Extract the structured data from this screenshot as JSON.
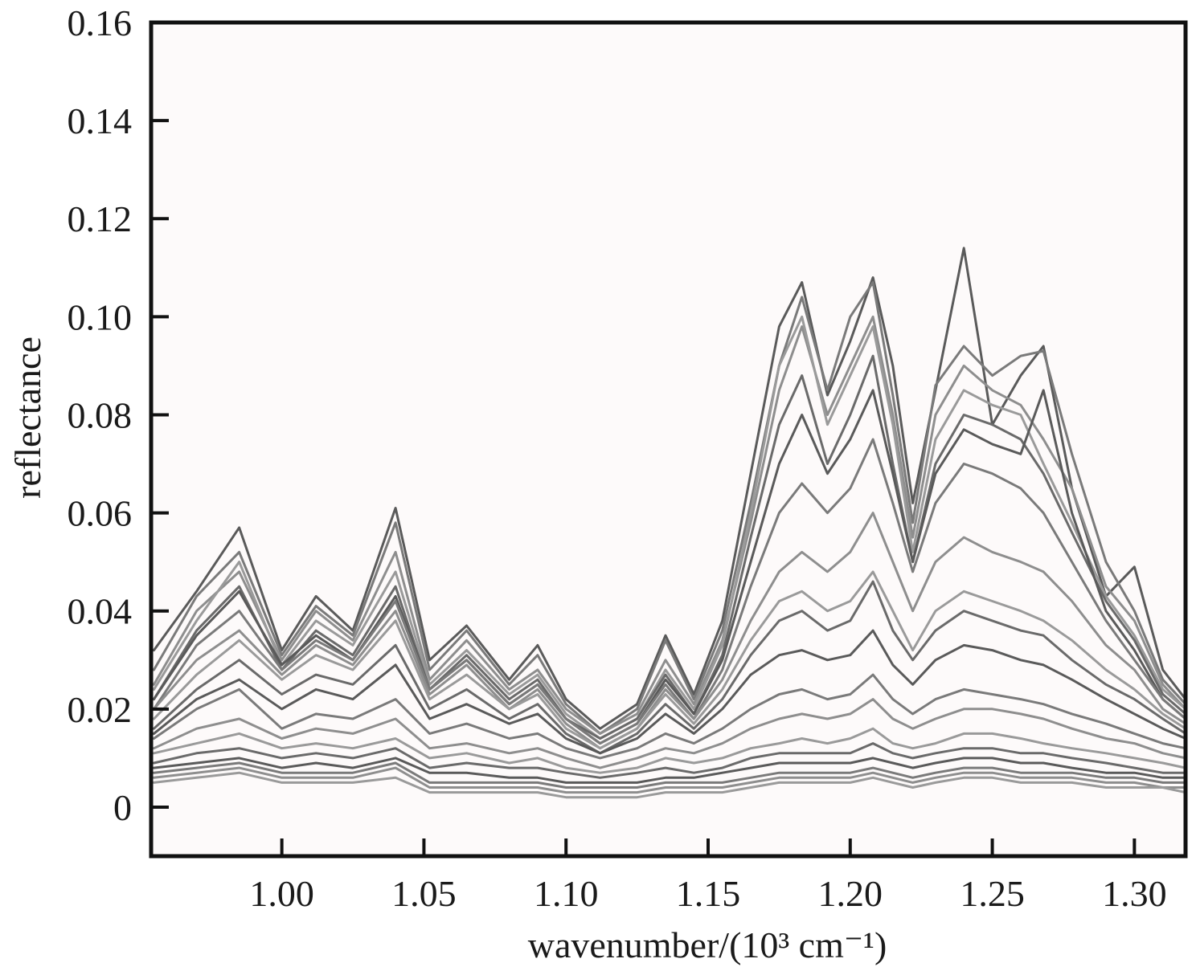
{
  "chart_data": {
    "type": "line",
    "title": "",
    "xlabel": "wavenumber/(10³ cm⁻¹)",
    "ylabel": "reflectance",
    "xlim": [
      0.954,
      1.318
    ],
    "ylim": [
      -0.01,
      0.16
    ],
    "xticks": [
      1.0,
      1.05,
      1.1,
      1.15,
      1.2,
      1.25,
      1.3
    ],
    "xtick_labels": [
      "1.00",
      "1.05",
      "1.10",
      "1.15",
      "1.20",
      "1.25",
      "1.30"
    ],
    "yticks": [
      0,
      0.02,
      0.04,
      0.06,
      0.08,
      0.1,
      0.12,
      0.14,
      0.16
    ],
    "ytick_labels": [
      "0",
      "0.02",
      "0.04",
      "0.06",
      "0.08",
      "0.10",
      "0.12",
      "0.14",
      "0.16"
    ],
    "grid": false,
    "legend": "none",
    "plot_background": "#fdfafa",
    "series_colors": [
      "#5a5a5a",
      "#7a7a7a",
      "#8e8e8e",
      "#9a9a9a",
      "#6a6a6a"
    ],
    "x": [
      0.955,
      0.97,
      0.985,
      1.0,
      1.012,
      1.025,
      1.04,
      1.052,
      1.065,
      1.08,
      1.09,
      1.1,
      1.112,
      1.125,
      1.135,
      1.145,
      1.155,
      1.165,
      1.175,
      1.183,
      1.192,
      1.2,
      1.208,
      1.215,
      1.222,
      1.23,
      1.24,
      1.25,
      1.26,
      1.268,
      1.278,
      1.29,
      1.3,
      1.31,
      1.318
    ],
    "series": [
      {
        "values": [
          0.032,
          0.044,
          0.057,
          0.032,
          0.043,
          0.036,
          0.061,
          0.03,
          0.037,
          0.026,
          0.033,
          0.022,
          0.016,
          0.021,
          0.035,
          0.023,
          0.038,
          0.068,
          0.098,
          0.107,
          0.084,
          0.095,
          0.108,
          0.09,
          0.062,
          0.085,
          0.114,
          0.078,
          0.088,
          0.094,
          0.065,
          0.043,
          0.049,
          0.028,
          0.022
        ]
      },
      {
        "values": [
          0.028,
          0.043,
          0.052,
          0.031,
          0.041,
          0.035,
          0.058,
          0.028,
          0.036,
          0.025,
          0.031,
          0.021,
          0.015,
          0.02,
          0.034,
          0.022,
          0.036,
          0.062,
          0.09,
          0.104,
          0.085,
          0.1,
          0.107,
          0.084,
          0.058,
          0.086,
          0.094,
          0.088,
          0.092,
          0.093,
          0.072,
          0.05,
          0.04,
          0.026,
          0.021
        ]
      },
      {
        "values": [
          0.025,
          0.04,
          0.048,
          0.03,
          0.04,
          0.034,
          0.052,
          0.026,
          0.034,
          0.024,
          0.028,
          0.02,
          0.015,
          0.019,
          0.03,
          0.021,
          0.034,
          0.058,
          0.085,
          0.098,
          0.08,
          0.09,
          0.1,
          0.08,
          0.055,
          0.08,
          0.09,
          0.085,
          0.082,
          0.075,
          0.065,
          0.045,
          0.038,
          0.025,
          0.02
        ]
      },
      {
        "values": [
          0.024,
          0.038,
          0.05,
          0.029,
          0.038,
          0.033,
          0.048,
          0.025,
          0.032,
          0.023,
          0.027,
          0.019,
          0.014,
          0.018,
          0.028,
          0.02,
          0.033,
          0.06,
          0.09,
          0.1,
          0.078,
          0.088,
          0.098,
          0.078,
          0.052,
          0.075,
          0.085,
          0.082,
          0.08,
          0.07,
          0.058,
          0.043,
          0.035,
          0.024,
          0.02
        ]
      },
      {
        "values": [
          0.022,
          0.036,
          0.045,
          0.028,
          0.036,
          0.031,
          0.045,
          0.024,
          0.031,
          0.022,
          0.026,
          0.018,
          0.014,
          0.018,
          0.027,
          0.019,
          0.031,
          0.055,
          0.078,
          0.088,
          0.07,
          0.08,
          0.092,
          0.07,
          0.05,
          0.07,
          0.08,
          0.078,
          0.075,
          0.068,
          0.056,
          0.042,
          0.034,
          0.023,
          0.019
        ]
      },
      {
        "values": [
          0.022,
          0.035,
          0.044,
          0.029,
          0.035,
          0.03,
          0.043,
          0.024,
          0.03,
          0.021,
          0.025,
          0.018,
          0.013,
          0.017,
          0.026,
          0.019,
          0.03,
          0.05,
          0.07,
          0.08,
          0.068,
          0.075,
          0.085,
          0.068,
          0.05,
          0.068,
          0.077,
          0.074,
          0.072,
          0.085,
          0.06,
          0.04,
          0.032,
          0.022,
          0.018
        ]
      },
      {
        "values": [
          0.02,
          0.033,
          0.04,
          0.028,
          0.034,
          0.03,
          0.042,
          0.024,
          0.03,
          0.021,
          0.025,
          0.018,
          0.013,
          0.017,
          0.025,
          0.018,
          0.028,
          0.045,
          0.06,
          0.066,
          0.06,
          0.065,
          0.075,
          0.062,
          0.048,
          0.062,
          0.07,
          0.068,
          0.065,
          0.06,
          0.05,
          0.038,
          0.03,
          0.022,
          0.018
        ]
      },
      {
        "values": [
          0.02,
          0.03,
          0.036,
          0.027,
          0.033,
          0.029,
          0.04,
          0.023,
          0.029,
          0.02,
          0.024,
          0.017,
          0.012,
          0.016,
          0.024,
          0.018,
          0.026,
          0.038,
          0.048,
          0.052,
          0.048,
          0.052,
          0.06,
          0.05,
          0.04,
          0.05,
          0.055,
          0.052,
          0.05,
          0.048,
          0.042,
          0.033,
          0.028,
          0.02,
          0.017
        ]
      },
      {
        "values": [
          0.018,
          0.027,
          0.034,
          0.026,
          0.031,
          0.028,
          0.038,
          0.022,
          0.027,
          0.02,
          0.023,
          0.016,
          0.012,
          0.016,
          0.023,
          0.017,
          0.024,
          0.034,
          0.042,
          0.044,
          0.04,
          0.042,
          0.048,
          0.04,
          0.032,
          0.04,
          0.044,
          0.042,
          0.04,
          0.038,
          0.034,
          0.028,
          0.024,
          0.019,
          0.016
        ]
      },
      {
        "values": [
          0.016,
          0.024,
          0.03,
          0.023,
          0.027,
          0.025,
          0.033,
          0.02,
          0.024,
          0.018,
          0.021,
          0.015,
          0.011,
          0.015,
          0.021,
          0.016,
          0.022,
          0.031,
          0.038,
          0.04,
          0.036,
          0.038,
          0.046,
          0.036,
          0.03,
          0.036,
          0.04,
          0.038,
          0.036,
          0.035,
          0.03,
          0.025,
          0.022,
          0.018,
          0.015
        ]
      },
      {
        "values": [
          0.015,
          0.022,
          0.026,
          0.02,
          0.024,
          0.022,
          0.029,
          0.018,
          0.021,
          0.017,
          0.019,
          0.014,
          0.011,
          0.014,
          0.019,
          0.015,
          0.02,
          0.027,
          0.031,
          0.032,
          0.03,
          0.031,
          0.036,
          0.029,
          0.025,
          0.03,
          0.033,
          0.032,
          0.03,
          0.029,
          0.026,
          0.022,
          0.019,
          0.016,
          0.014
        ]
      },
      {
        "values": [
          0.014,
          0.02,
          0.024,
          0.016,
          0.019,
          0.018,
          0.022,
          0.015,
          0.017,
          0.014,
          0.015,
          0.012,
          0.01,
          0.012,
          0.015,
          0.013,
          0.016,
          0.02,
          0.023,
          0.024,
          0.022,
          0.023,
          0.027,
          0.022,
          0.019,
          0.022,
          0.024,
          0.023,
          0.022,
          0.021,
          0.019,
          0.017,
          0.015,
          0.013,
          0.012
        ]
      },
      {
        "values": [
          0.012,
          0.016,
          0.018,
          0.014,
          0.016,
          0.015,
          0.018,
          0.012,
          0.013,
          0.011,
          0.012,
          0.01,
          0.008,
          0.01,
          0.012,
          0.011,
          0.013,
          0.016,
          0.018,
          0.019,
          0.018,
          0.019,
          0.022,
          0.018,
          0.016,
          0.018,
          0.02,
          0.02,
          0.019,
          0.018,
          0.016,
          0.014,
          0.013,
          0.011,
          0.01
        ]
      },
      {
        "values": [
          0.011,
          0.013,
          0.015,
          0.012,
          0.013,
          0.012,
          0.014,
          0.01,
          0.011,
          0.009,
          0.01,
          0.008,
          0.007,
          0.008,
          0.01,
          0.009,
          0.01,
          0.012,
          0.013,
          0.014,
          0.013,
          0.014,
          0.016,
          0.013,
          0.012,
          0.013,
          0.015,
          0.015,
          0.014,
          0.013,
          0.012,
          0.011,
          0.01,
          0.009,
          0.008
        ]
      },
      {
        "values": [
          0.009,
          0.011,
          0.012,
          0.01,
          0.011,
          0.01,
          0.012,
          0.008,
          0.009,
          0.008,
          0.008,
          0.007,
          0.006,
          0.007,
          0.008,
          0.007,
          0.008,
          0.01,
          0.011,
          0.011,
          0.011,
          0.011,
          0.013,
          0.011,
          0.01,
          0.011,
          0.012,
          0.012,
          0.011,
          0.011,
          0.01,
          0.009,
          0.008,
          0.007,
          0.007
        ]
      },
      {
        "values": [
          0.008,
          0.009,
          0.01,
          0.008,
          0.009,
          0.008,
          0.01,
          0.007,
          0.007,
          0.006,
          0.006,
          0.005,
          0.005,
          0.005,
          0.006,
          0.006,
          0.007,
          0.008,
          0.009,
          0.009,
          0.009,
          0.009,
          0.01,
          0.009,
          0.008,
          0.009,
          0.01,
          0.01,
          0.009,
          0.009,
          0.008,
          0.007,
          0.007,
          0.006,
          0.006
        ]
      },
      {
        "values": [
          0.007,
          0.008,
          0.009,
          0.007,
          0.007,
          0.007,
          0.009,
          0.005,
          0.005,
          0.005,
          0.005,
          0.004,
          0.004,
          0.004,
          0.005,
          0.005,
          0.005,
          0.006,
          0.007,
          0.007,
          0.007,
          0.007,
          0.008,
          0.007,
          0.006,
          0.007,
          0.008,
          0.008,
          0.007,
          0.007,
          0.007,
          0.006,
          0.006,
          0.005,
          0.005
        ]
      },
      {
        "values": [
          0.006,
          0.007,
          0.008,
          0.006,
          0.006,
          0.006,
          0.008,
          0.004,
          0.004,
          0.004,
          0.004,
          0.003,
          0.003,
          0.003,
          0.004,
          0.004,
          0.004,
          0.005,
          0.006,
          0.006,
          0.006,
          0.006,
          0.007,
          0.006,
          0.005,
          0.006,
          0.007,
          0.007,
          0.006,
          0.006,
          0.006,
          0.005,
          0.005,
          0.004,
          0.004
        ]
      },
      {
        "values": [
          0.005,
          0.006,
          0.007,
          0.005,
          0.005,
          0.005,
          0.006,
          0.003,
          0.003,
          0.003,
          0.003,
          0.002,
          0.002,
          0.002,
          0.003,
          0.003,
          0.003,
          0.004,
          0.005,
          0.005,
          0.005,
          0.005,
          0.006,
          0.005,
          0.004,
          0.005,
          0.006,
          0.006,
          0.005,
          0.005,
          0.005,
          0.004,
          0.004,
          0.004,
          0.003
        ]
      }
    ]
  }
}
